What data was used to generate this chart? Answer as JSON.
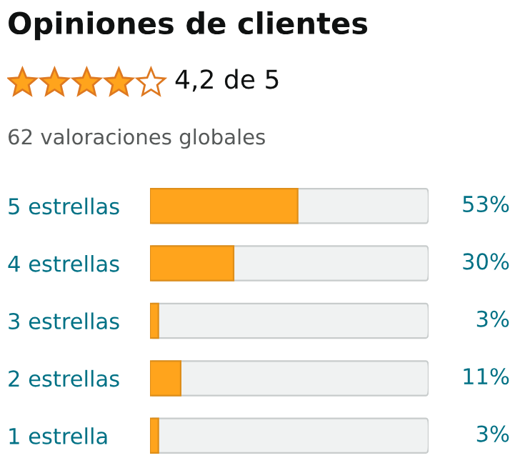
{
  "chart_data": {
    "type": "bar",
    "orientation": "horizontal",
    "title": "Opiniones de clientes",
    "subtitle": "4,2 de 5",
    "annotations": [
      "62 valoraciones globales"
    ],
    "categories": [
      "5 estrellas",
      "4 estrellas",
      "3 estrellas",
      "2 estrellas",
      "1 estrella"
    ],
    "values": [
      53,
      30,
      3,
      11,
      3
    ],
    "color": "#ffa41c",
    "xlim": [
      0,
      100
    ],
    "tick_labels": "y",
    "value_labels": [
      "53%",
      "30%",
      "3%",
      "11%",
      "3%"
    ],
    "grid": false
  }
}
